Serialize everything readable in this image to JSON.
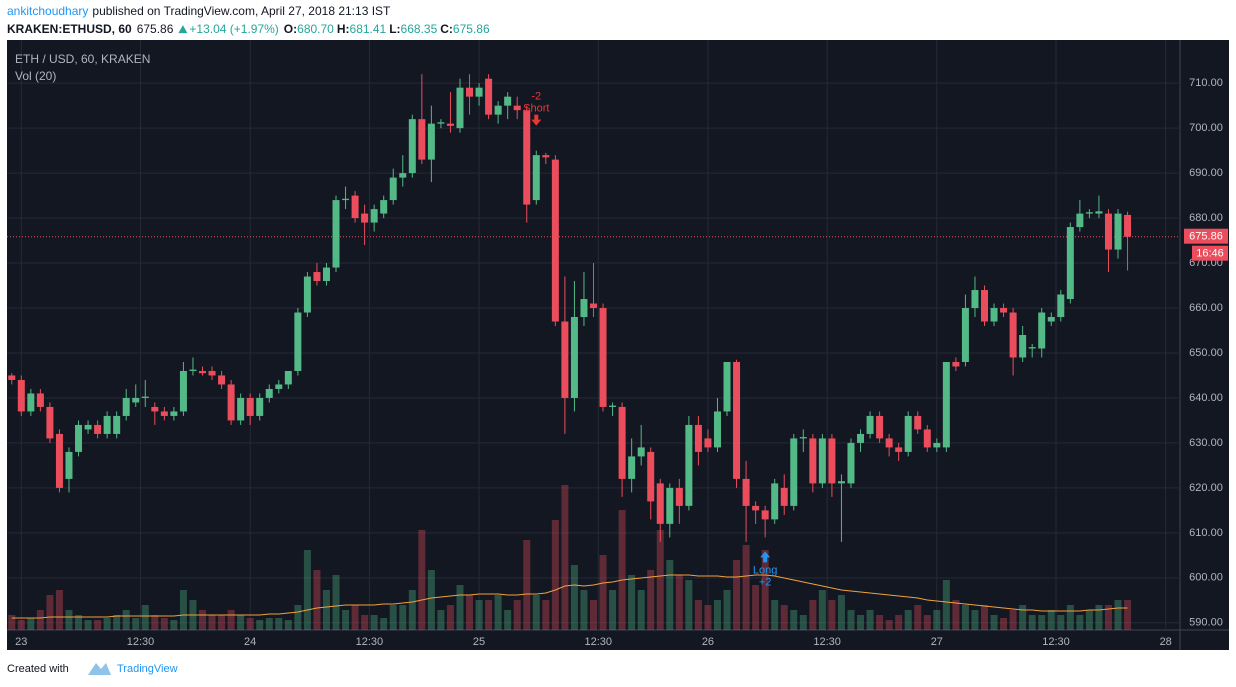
{
  "header": {
    "author": "ankitchoudhary",
    "published": "published on TradingView.com, April 27, 2018 21:13 IST",
    "symbol": "KRAKEN:ETHUSD, 60",
    "price": "675.86",
    "change": "+13.04 (+1.97%)",
    "ohlc": [
      {
        "label": "O:",
        "value": "680.70"
      },
      {
        "label": "H:",
        "value": "681.41"
      },
      {
        "label": "L:",
        "value": "668.35"
      },
      {
        "label": "C:",
        "value": "675.86"
      }
    ]
  },
  "chart_data": {
    "type": "candlestick",
    "title": "ETH / USD, 60, KRAKEN",
    "indicator": "Vol (20)",
    "up_color": "#53b987",
    "down_color": "#eb4d5c",
    "ma_color": "#f0a23b",
    "grid": true,
    "x": [
      -1,
      0,
      1,
      2,
      3,
      4,
      5,
      6,
      7,
      8,
      9,
      10,
      11,
      12,
      13,
      14,
      15,
      16,
      17,
      18,
      19,
      20,
      21,
      22,
      23,
      24,
      25,
      26,
      27,
      28,
      29,
      30,
      31,
      32,
      33,
      34,
      35,
      36,
      37,
      38,
      39,
      40,
      41,
      42,
      43,
      44,
      45,
      46,
      47,
      48,
      49,
      50,
      51,
      52,
      53,
      54,
      55,
      56,
      57,
      58,
      59,
      60,
      61,
      62,
      63,
      64,
      65,
      66,
      67,
      68,
      69,
      70,
      71,
      72,
      73,
      74,
      75,
      76,
      77,
      78,
      79,
      80,
      81,
      82,
      83,
      84,
      85,
      86,
      87,
      88,
      89,
      90,
      91,
      92,
      93,
      94,
      95,
      96,
      97,
      98,
      99,
      100,
      101,
      102,
      103,
      104,
      105,
      106,
      107,
      108,
      109,
      110,
      111,
      112,
      113,
      114,
      115,
      116
    ],
    "open": [
      645,
      644,
      637,
      641,
      638,
      632,
      622,
      628,
      633,
      634,
      632,
      632,
      636,
      639,
      640,
      638,
      637,
      636,
      637,
      646,
      646,
      646,
      645,
      643,
      635,
      640,
      636,
      640,
      642,
      643,
      646,
      659,
      668,
      666,
      669,
      684,
      685,
      681,
      679,
      681,
      684,
      689,
      690,
      702,
      693,
      701,
      701,
      700,
      709,
      707,
      711,
      703,
      705,
      705,
      704,
      684,
      694,
      693,
      657,
      640,
      658,
      661,
      660,
      638,
      638,
      622,
      627,
      628,
      621,
      612,
      620,
      616,
      634,
      631,
      629,
      637,
      648,
      622,
      616,
      615,
      613,
      620,
      616,
      631,
      631,
      621,
      631,
      621,
      621,
      630,
      632,
      636,
      631,
      629,
      628,
      636,
      633,
      629,
      629,
      648,
      648,
      660,
      664,
      657,
      660,
      659,
      649,
      651,
      651,
      657,
      658,
      662,
      678,
      681,
      681,
      681,
      673,
      680.7
    ],
    "high": [
      645.5,
      645,
      642,
      642,
      639,
      633,
      629,
      635,
      635,
      635,
      637,
      637,
      642,
      643,
      644,
      639,
      638,
      638,
      648,
      649,
      647,
      647,
      646,
      644,
      641,
      641,
      641,
      643,
      644,
      646,
      660,
      668,
      670,
      670,
      685,
      687,
      686,
      683,
      683,
      685,
      691,
      694,
      703,
      712,
      705,
      702,
      708,
      711,
      712,
      710,
      712,
      706,
      708,
      707,
      705,
      695,
      694.5,
      694,
      667,
      666,
      668,
      670,
      661,
      639,
      639,
      631,
      634,
      629,
      622,
      621,
      622,
      636,
      636,
      633,
      640,
      648,
      648.5,
      626,
      617,
      616,
      622,
      623,
      632,
      633,
      632,
      632,
      632,
      623,
      631,
      633,
      637,
      637,
      632,
      630,
      637,
      637,
      634,
      631,
      648,
      649,
      663,
      667,
      665,
      661,
      661,
      660,
      656,
      652,
      660,
      659,
      664,
      679,
      684,
      682,
      685,
      682,
      682,
      681.41
    ],
    "low": [
      643,
      636,
      636,
      637,
      630,
      619,
      619,
      627,
      632,
      631,
      631,
      631,
      635,
      638,
      638,
      634,
      635,
      635,
      636,
      645,
      645,
      644,
      642,
      634,
      634,
      634,
      635,
      639,
      641,
      642,
      645,
      658,
      665,
      665,
      668,
      682,
      679,
      674,
      677,
      680,
      683,
      687,
      689,
      692,
      688,
      700,
      699,
      699,
      703,
      705,
      702,
      701,
      702,
      702,
      679,
      683,
      692,
      656,
      632,
      637,
      656,
      658,
      637,
      636,
      618,
      619,
      625,
      613,
      608,
      609,
      612,
      615,
      625,
      628,
      628,
      636,
      620,
      608,
      612,
      609,
      612,
      614,
      615,
      628,
      619,
      620,
      618,
      608,
      620,
      628,
      631,
      630,
      627,
      626,
      627,
      632,
      628,
      628,
      628,
      646,
      647,
      658,
      656,
      656,
      658,
      645,
      648,
      649,
      649,
      656,
      657,
      661,
      677,
      680,
      680,
      668,
      671,
      668.35
    ],
    "close": [
      644,
      637,
      641,
      638,
      631,
      620,
      628,
      634,
      634,
      632,
      636,
      636,
      640,
      640,
      640.3,
      637,
      636,
      637,
      646,
      646.3,
      645.5,
      645,
      643,
      635,
      640,
      636,
      640,
      642,
      643,
      646,
      659,
      667,
      666,
      669,
      684,
      684.3,
      680,
      679,
      682,
      684,
      689,
      690,
      702,
      693,
      701,
      701.3,
      700.5,
      709,
      707,
      709,
      703,
      705,
      707,
      704,
      683,
      694,
      693.5,
      657,
      640,
      658,
      662,
      660,
      638,
      638.3,
      622,
      627,
      629,
      617,
      612,
      620,
      616,
      634,
      628,
      629,
      637,
      648,
      622,
      616,
      615,
      613,
      621,
      616,
      631,
      631.3,
      621,
      631,
      621,
      621.5,
      630,
      632,
      636,
      631,
      629,
      628,
      636,
      633,
      629,
      630,
      648,
      647,
      660,
      664,
      657,
      660,
      659,
      649,
      654,
      651.3,
      659,
      658,
      663,
      678,
      681,
      681.3,
      681.5,
      673,
      681,
      675.86
    ],
    "volume": [
      15,
      10,
      12,
      20,
      35,
      40,
      20,
      15,
      10,
      10,
      12,
      15,
      20,
      12,
      25,
      15,
      12,
      10,
      40,
      30,
      20,
      15,
      15,
      20,
      15,
      12,
      10,
      12,
      12,
      10,
      25,
      80,
      60,
      40,
      55,
      20,
      25,
      15,
      15,
      12,
      25,
      25,
      40,
      100,
      60,
      20,
      25,
      45,
      35,
      30,
      30,
      35,
      20,
      30,
      90,
      35,
      30,
      110,
      145,
      65,
      40,
      30,
      75,
      40,
      120,
      55,
      40,
      60,
      100,
      70,
      55,
      50,
      30,
      25,
      30,
      40,
      70,
      85,
      45,
      80,
      30,
      25,
      20,
      15,
      30,
      40,
      30,
      35,
      20,
      15,
      20,
      15,
      10,
      15,
      20,
      25,
      15,
      20,
      50,
      30,
      25,
      20,
      25,
      15,
      12,
      20,
      25,
      15,
      15,
      20,
      15,
      25,
      15,
      20,
      25,
      25,
      30,
      30
    ],
    "volume_ma": [
      12,
      12,
      12,
      12,
      13,
      13,
      13,
      13,
      13,
      13,
      13,
      14,
      14,
      14,
      14,
      14,
      14,
      14,
      15,
      15,
      15,
      15,
      15,
      15,
      15,
      15,
      15,
      16,
      16,
      17,
      18,
      20,
      22,
      23,
      24,
      25,
      25,
      25,
      25,
      26,
      26,
      27,
      28,
      30,
      32,
      33,
      34,
      35,
      35,
      36,
      36,
      36,
      35,
      35,
      36,
      36,
      37,
      40,
      44,
      45,
      44,
      45,
      47,
      48,
      50,
      51,
      52,
      53,
      54,
      55,
      55,
      55,
      54,
      54,
      54,
      53,
      53,
      54,
      55,
      55,
      54,
      52,
      50,
      48,
      46,
      44,
      42,
      40,
      39,
      38,
      37,
      36,
      35,
      34,
      33,
      32,
      30,
      29,
      28,
      27,
      26,
      25,
      24,
      23,
      22,
      21,
      20,
      20,
      19,
      19,
      19,
      19,
      19,
      20,
      20,
      21,
      22,
      22
    ],
    "xlim": [
      -1.5,
      121.5
    ],
    "xticks": [
      {
        "value": 0,
        "label": "23"
      },
      {
        "value": 12.5,
        "label": "12:30"
      },
      {
        "value": 24,
        "label": "24"
      },
      {
        "value": 36.5,
        "label": "12:30"
      },
      {
        "value": 48,
        "label": "25"
      },
      {
        "value": 60.5,
        "label": "12:30"
      },
      {
        "value": 72,
        "label": "26"
      },
      {
        "value": 84.5,
        "label": "12:30"
      },
      {
        "value": 96,
        "label": "27"
      },
      {
        "value": 108.5,
        "label": "12:30"
      },
      {
        "value": 120,
        "label": "28"
      }
    ],
    "ylim": [
      588.4,
      719.6
    ],
    "yticks": [
      {
        "value": 590,
        "label": "590.00"
      },
      {
        "value": 600,
        "label": "600.00"
      },
      {
        "value": 610,
        "label": "610.00"
      },
      {
        "value": 620,
        "label": "620.00"
      },
      {
        "value": 630,
        "label": "630.00"
      },
      {
        "value": 640,
        "label": "640.00"
      },
      {
        "value": 650,
        "label": "650.00"
      },
      {
        "value": 660,
        "label": "660.00"
      },
      {
        "value": 670,
        "label": "670.00"
      },
      {
        "value": 680,
        "label": "680.00"
      },
      {
        "value": 690,
        "label": "690.00"
      },
      {
        "value": 700,
        "label": "700.00"
      },
      {
        "value": 710,
        "label": "710.00"
      }
    ],
    "last_price": 675.86,
    "countdown": "16:46",
    "annotations": [
      {
        "x": 54,
        "side": "sell",
        "label": "Short",
        "qty": "-2",
        "color": "#e53935"
      },
      {
        "x": 78,
        "side": "buy",
        "label": "Long",
        "qty": "+2",
        "color": "#2196f3"
      }
    ]
  },
  "footer": {
    "created_with": "Created with",
    "brand": "TradingView"
  }
}
